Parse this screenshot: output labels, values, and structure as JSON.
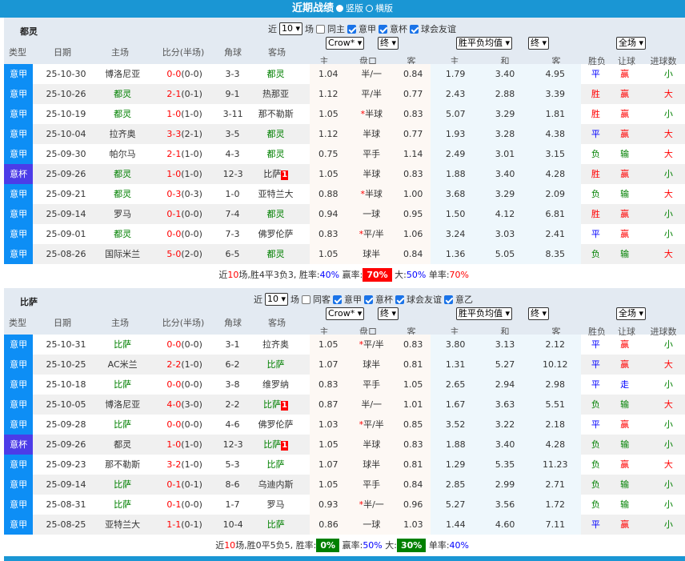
{
  "title": {
    "text": "近期战绩",
    "opt1": "竖版",
    "opt2": "横版",
    "selected": "竖版"
  },
  "columns": {
    "type": "类型",
    "date": "日期",
    "home": "主场",
    "score": "比分(半场)",
    "corner": "角球",
    "away": "客场",
    "crow_home": "主",
    "crow_line": "盘口",
    "crow_away": "客",
    "avg_home": "主",
    "avg_draw": "和",
    "avg_away": "客",
    "result": "胜负",
    "handicap": "让球",
    "ou": "进球数"
  },
  "colors": {
    "title_bar": "#1a96d4",
    "type_league": "#0d8ef5",
    "type_cup": "#4c3ce8",
    "win": "#ff0000",
    "draw": "#0000ff",
    "loss": "#008000"
  },
  "sections": [
    {
      "team": "都灵",
      "recent_label": "近",
      "recent_value": "10",
      "recent_unit": "场",
      "filters": [
        {
          "label": "同主",
          "checked": false
        },
        {
          "label": "意甲",
          "checked": true
        },
        {
          "label": "意杯",
          "checked": true
        },
        {
          "label": "球会友谊",
          "checked": true
        }
      ],
      "company": "Crow*",
      "odds_stage": "终",
      "avg_label": "胜平负均值",
      "avg_stage": "终",
      "scope": "全场",
      "rows": [
        [
          "意甲",
          "25-10-30",
          "博洛尼亚",
          false,
          "0-0",
          "(0-0)",
          "3-3",
          "都灵",
          true,
          "",
          "1.04",
          "半/一",
          false,
          "0.84",
          "1.79",
          "3.40",
          "4.95",
          "平",
          "赢",
          "小"
        ],
        [
          "意甲",
          "25-10-26",
          "都灵",
          true,
          "2-1",
          "(0-1)",
          "9-1",
          "热那亚",
          false,
          "",
          "1.12",
          "平/半",
          false,
          "0.77",
          "2.43",
          "2.88",
          "3.39",
          "胜",
          "赢",
          "大"
        ],
        [
          "意甲",
          "25-10-19",
          "都灵",
          true,
          "1-0",
          "(1-0)",
          "3-11",
          "那不勒斯",
          false,
          "",
          "1.05",
          "半球",
          true,
          "0.83",
          "5.07",
          "3.29",
          "1.81",
          "胜",
          "赢",
          "小"
        ],
        [
          "意甲",
          "25-10-04",
          "拉齐奥",
          false,
          "3-3",
          "(2-1)",
          "3-5",
          "都灵",
          true,
          "",
          "1.12",
          "半球",
          false,
          "0.77",
          "1.93",
          "3.28",
          "4.38",
          "平",
          "赢",
          "大"
        ],
        [
          "意甲",
          "25-09-30",
          "帕尔马",
          false,
          "2-1",
          "(1-0)",
          "4-3",
          "都灵",
          true,
          "",
          "0.75",
          "平手",
          false,
          "1.14",
          "2.49",
          "3.01",
          "3.15",
          "负",
          "输",
          "大"
        ],
        [
          "意杯",
          "25-09-26",
          "都灵",
          true,
          "1-0",
          "(1-0)",
          "12-3",
          "比萨",
          false,
          "1",
          "1.05",
          "半球",
          false,
          "0.83",
          "1.88",
          "3.40",
          "4.28",
          "胜",
          "赢",
          "小"
        ],
        [
          "意甲",
          "25-09-21",
          "都灵",
          true,
          "0-3",
          "(0-3)",
          "1-0",
          "亚特兰大",
          false,
          "",
          "0.88",
          "半球",
          true,
          "1.00",
          "3.68",
          "3.29",
          "2.09",
          "负",
          "输",
          "大"
        ],
        [
          "意甲",
          "25-09-14",
          "罗马",
          false,
          "0-1",
          "(0-0)",
          "7-4",
          "都灵",
          true,
          "",
          "0.94",
          "一球",
          false,
          "0.95",
          "1.50",
          "4.12",
          "6.81",
          "胜",
          "赢",
          "小"
        ],
        [
          "意甲",
          "25-09-01",
          "都灵",
          true,
          "0-0",
          "(0-0)",
          "7-3",
          "佛罗伦萨",
          false,
          "",
          "0.83",
          "平/半",
          true,
          "1.06",
          "3.24",
          "3.03",
          "2.41",
          "平",
          "赢",
          "小"
        ],
        [
          "意甲",
          "25-08-26",
          "国际米兰",
          false,
          "5-0",
          "(2-0)",
          "6-5",
          "都灵",
          true,
          "",
          "1.05",
          "球半",
          false,
          "0.84",
          "1.36",
          "5.05",
          "8.35",
          "负",
          "输",
          "大"
        ]
      ],
      "summary": {
        "prefix": "近",
        "count": "10",
        "record": "场,胜4平3负3,",
        "win_label": "胜率:",
        "win_rate": "40%",
        "win_style": "blue",
        "ah_label": "赢率:",
        "ah_rate": "70%",
        "ah_style": "bx red",
        "over_label": "大:",
        "over_rate": "50%",
        "over_style": "blue",
        "odd_label": "单率:",
        "odd_rate": "70%",
        "odd_style": "red"
      }
    },
    {
      "team": "比萨",
      "recent_label": "近",
      "recent_value": "10",
      "recent_unit": "场",
      "filters": [
        {
          "label": "同客",
          "checked": false
        },
        {
          "label": "意甲",
          "checked": true
        },
        {
          "label": "意杯",
          "checked": true
        },
        {
          "label": "球会友谊",
          "checked": true
        },
        {
          "label": "意乙",
          "checked": true
        }
      ],
      "company": "Crow*",
      "odds_stage": "终",
      "avg_label": "胜平负均值",
      "avg_stage": "终",
      "scope": "全场",
      "rows": [
        [
          "意甲",
          "25-10-31",
          "比萨",
          true,
          "0-0",
          "(0-0)",
          "3-1",
          "拉齐奥",
          false,
          "",
          "1.05",
          "平/半",
          true,
          "0.83",
          "3.80",
          "3.13",
          "2.12",
          "平",
          "赢",
          "小"
        ],
        [
          "意甲",
          "25-10-25",
          "AC米兰",
          false,
          "2-2",
          "(1-0)",
          "6-2",
          "比萨",
          true,
          "",
          "1.07",
          "球半",
          false,
          "0.81",
          "1.31",
          "5.27",
          "10.12",
          "平",
          "赢",
          "大"
        ],
        [
          "意甲",
          "25-10-18",
          "比萨",
          true,
          "0-0",
          "(0-0)",
          "3-8",
          "维罗纳",
          false,
          "",
          "0.83",
          "平手",
          false,
          "1.05",
          "2.65",
          "2.94",
          "2.98",
          "平",
          "走",
          "小"
        ],
        [
          "意甲",
          "25-10-05",
          "博洛尼亚",
          false,
          "4-0",
          "(3-0)",
          "2-2",
          "比萨",
          true,
          "1",
          "0.87",
          "半/一",
          false,
          "1.01",
          "1.67",
          "3.63",
          "5.51",
          "负",
          "输",
          "大"
        ],
        [
          "意甲",
          "25-09-28",
          "比萨",
          true,
          "0-0",
          "(0-0)",
          "4-6",
          "佛罗伦萨",
          false,
          "",
          "1.03",
          "平/半",
          true,
          "0.85",
          "3.52",
          "3.22",
          "2.18",
          "平",
          "赢",
          "小"
        ],
        [
          "意杯",
          "25-09-26",
          "都灵",
          false,
          "1-0",
          "(1-0)",
          "12-3",
          "比萨",
          true,
          "1",
          "1.05",
          "半球",
          false,
          "0.83",
          "1.88",
          "3.40",
          "4.28",
          "负",
          "输",
          "小"
        ],
        [
          "意甲",
          "25-09-23",
          "那不勒斯",
          false,
          "3-2",
          "(1-0)",
          "5-3",
          "比萨",
          true,
          "",
          "1.07",
          "球半",
          false,
          "0.81",
          "1.29",
          "5.35",
          "11.23",
          "负",
          "赢",
          "大"
        ],
        [
          "意甲",
          "25-09-14",
          "比萨",
          true,
          "0-1",
          "(0-1)",
          "8-6",
          "乌迪内斯",
          false,
          "",
          "1.05",
          "平手",
          false,
          "0.84",
          "2.85",
          "2.99",
          "2.71",
          "负",
          "输",
          "小"
        ],
        [
          "意甲",
          "25-08-31",
          "比萨",
          true,
          "0-1",
          "(0-0)",
          "1-7",
          "罗马",
          false,
          "",
          "0.93",
          "半/一",
          true,
          "0.96",
          "5.27",
          "3.56",
          "1.72",
          "负",
          "输",
          "小"
        ],
        [
          "意甲",
          "25-08-25",
          "亚特兰大",
          false,
          "1-1",
          "(0-1)",
          "10-4",
          "比萨",
          true,
          "",
          "0.86",
          "一球",
          false,
          "1.03",
          "1.44",
          "4.60",
          "7.11",
          "平",
          "赢",
          "小"
        ]
      ],
      "summary": {
        "prefix": "近",
        "count": "10",
        "record": "场,胜0平5负5,",
        "win_label": "胜率:",
        "win_rate": "0%",
        "win_style": "bx green",
        "ah_label": "赢率:",
        "ah_rate": "50%",
        "ah_style": "blue",
        "over_label": "大:",
        "over_rate": "30%",
        "over_style": "bx green",
        "odd_label": "单率:",
        "odd_rate": "40%",
        "odd_style": "blue"
      }
    }
  ]
}
